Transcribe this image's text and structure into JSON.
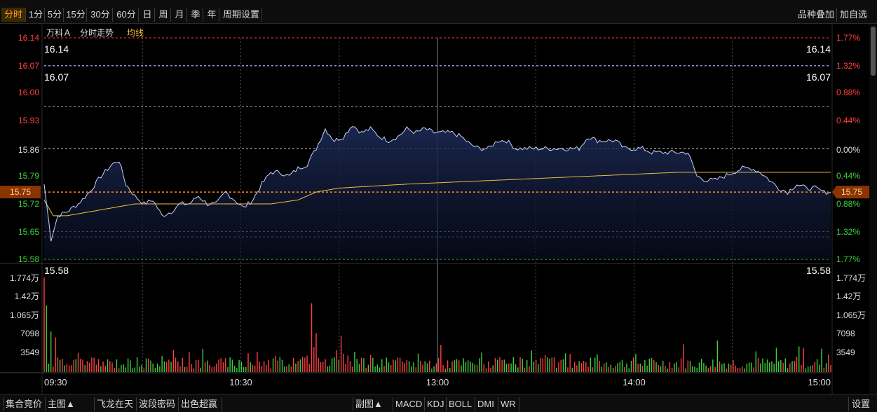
{
  "toolbar": {
    "periods": [
      "分时",
      "1分",
      "5分",
      "15分",
      "30分",
      "60分",
      "日",
      "周",
      "月",
      "季",
      "年",
      "周期设置"
    ],
    "selected": "分时",
    "right_buttons": [
      "品种叠加",
      "加自选"
    ]
  },
  "chart_header": {
    "stock_name": "万科Ａ",
    "mode": "分时走势",
    "avg_label": "均线"
  },
  "colors": {
    "price_line": "#c8d0ff",
    "avg_line": "#f0c040",
    "up": "#ff4040",
    "down": "#40d040",
    "neutral": "#ffffff",
    "current": "#ff8a1f",
    "high_line": "#ff4040",
    "low_line": "#3fbf4f",
    "grid": "#6a6a6a"
  },
  "price_labels_left": [
    "16.14",
    "16.07",
    "16.00",
    "15.93",
    "15.86",
    "15.79",
    "15.72",
    "15.65",
    "15.58"
  ],
  "pct_labels_right": [
    "1.77%",
    "1.32%",
    "0.88%",
    "0.44%",
    "0.00%",
    "0.44%",
    "0.88%",
    "1.32%",
    "1.77%"
  ],
  "price_overlay": {
    "high_left": "16.14",
    "high_right": "16.14",
    "second_left": "16.07",
    "second_right": "16.07",
    "low_left": "15.58",
    "low_right": "15.58"
  },
  "current_price": "15.75",
  "volume_labels_left": [
    "1.774万",
    "1.42万",
    "1.065万",
    "7098",
    "3549"
  ],
  "volume_labels_right": [
    "1.774万",
    "1.42万",
    "1.065万",
    "7098",
    "3549"
  ],
  "time_labels": [
    "09:30",
    "10:30",
    "13:00",
    "14:00",
    "15:00"
  ],
  "bottom_left": [
    "集合竞价",
    "主图▲",
    "飞龙在天",
    "波段密码",
    "出色超赢"
  ],
  "bottom_mid": [
    "副图▲",
    "MACD",
    "KDJ",
    "BOLL",
    "DMI",
    "WR"
  ],
  "bottom_right": "设置",
  "chart_data": {
    "type": "line",
    "preclose": 15.86,
    "ylim": [
      15.58,
      16.14
    ],
    "x": [
      "09:30",
      "10:30",
      "13:00",
      "14:00",
      "15:00"
    ],
    "price_anchors": [
      {
        "t": 0,
        "p": 15.77
      },
      {
        "t": 3,
        "p": 15.63
      },
      {
        "t": 6,
        "p": 15.69
      },
      {
        "t": 10,
        "p": 15.7
      },
      {
        "t": 15,
        "p": 15.72
      },
      {
        "t": 20,
        "p": 15.75
      },
      {
        "t": 25,
        "p": 15.79
      },
      {
        "t": 30,
        "p": 15.82
      },
      {
        "t": 33,
        "p": 15.83
      },
      {
        "t": 36,
        "p": 15.77
      },
      {
        "t": 40,
        "p": 15.74
      },
      {
        "t": 44,
        "p": 15.72
      },
      {
        "t": 48,
        "p": 15.73
      },
      {
        "t": 52,
        "p": 15.69
      },
      {
        "t": 56,
        "p": 15.7
      },
      {
        "t": 60,
        "p": 15.72
      },
      {
        "t": 64,
        "p": 15.72
      },
      {
        "t": 68,
        "p": 15.74
      },
      {
        "t": 72,
        "p": 15.72
      },
      {
        "t": 76,
        "p": 15.72
      },
      {
        "t": 80,
        "p": 15.75
      },
      {
        "t": 84,
        "p": 15.73
      },
      {
        "t": 88,
        "p": 15.71
      },
      {
        "t": 92,
        "p": 15.73
      },
      {
        "t": 96,
        "p": 15.77
      },
      {
        "t": 100,
        "p": 15.8
      },
      {
        "t": 104,
        "p": 15.8
      },
      {
        "t": 108,
        "p": 15.79
      },
      {
        "t": 112,
        "p": 15.81
      },
      {
        "t": 116,
        "p": 15.82
      },
      {
        "t": 120,
        "p": 15.86
      },
      {
        "t": 124,
        "p": 15.91
      },
      {
        "t": 128,
        "p": 15.88
      },
      {
        "t": 132,
        "p": 15.89
      },
      {
        "t": 136,
        "p": 15.92
      },
      {
        "t": 140,
        "p": 15.9
      },
      {
        "t": 144,
        "p": 15.91
      },
      {
        "t": 148,
        "p": 15.89
      },
      {
        "t": 152,
        "p": 15.88
      },
      {
        "t": 156,
        "p": 15.89
      },
      {
        "t": 160,
        "p": 15.91
      },
      {
        "t": 164,
        "p": 15.9
      },
      {
        "t": 168,
        "p": 15.91
      },
      {
        "t": 172,
        "p": 15.9
      },
      {
        "t": 176,
        "p": 15.9
      },
      {
        "t": 180,
        "p": 15.9
      },
      {
        "t": 184,
        "p": 15.89
      },
      {
        "t": 188,
        "p": 15.87
      },
      {
        "t": 192,
        "p": 15.86
      },
      {
        "t": 196,
        "p": 15.86
      },
      {
        "t": 200,
        "p": 15.88
      },
      {
        "t": 204,
        "p": 15.88
      },
      {
        "t": 208,
        "p": 15.86
      },
      {
        "t": 212,
        "p": 15.86
      },
      {
        "t": 216,
        "p": 15.86
      },
      {
        "t": 220,
        "p": 15.86
      },
      {
        "t": 224,
        "p": 15.86
      },
      {
        "t": 228,
        "p": 15.86
      },
      {
        "t": 232,
        "p": 15.86
      },
      {
        "t": 236,
        "p": 15.86
      },
      {
        "t": 240,
        "p": 15.89
      },
      {
        "t": 244,
        "p": 15.88
      },
      {
        "t": 248,
        "p": 15.88
      },
      {
        "t": 252,
        "p": 15.88
      },
      {
        "t": 256,
        "p": 15.86
      },
      {
        "t": 260,
        "p": 15.86
      },
      {
        "t": 264,
        "p": 15.86
      },
      {
        "t": 268,
        "p": 15.85
      },
      {
        "t": 272,
        "p": 15.85
      },
      {
        "t": 276,
        "p": 15.85
      },
      {
        "t": 280,
        "p": 15.85
      },
      {
        "t": 284,
        "p": 15.85
      },
      {
        "t": 288,
        "p": 15.79
      },
      {
        "t": 292,
        "p": 15.78
      },
      {
        "t": 296,
        "p": 15.78
      },
      {
        "t": 300,
        "p": 15.79
      },
      {
        "t": 304,
        "p": 15.8
      },
      {
        "t": 308,
        "p": 15.81
      },
      {
        "t": 312,
        "p": 15.81
      },
      {
        "t": 316,
        "p": 15.8
      },
      {
        "t": 320,
        "p": 15.78
      },
      {
        "t": 324,
        "p": 15.76
      },
      {
        "t": 328,
        "p": 15.75
      },
      {
        "t": 332,
        "p": 15.77
      },
      {
        "t": 336,
        "p": 15.76
      },
      {
        "t": 340,
        "p": 15.76
      },
      {
        "t": 344,
        "p": 15.75
      },
      {
        "t": 347,
        "p": 15.75
      }
    ],
    "avg_anchors": [
      {
        "t": 0,
        "p": 15.73
      },
      {
        "t": 4,
        "p": 15.69
      },
      {
        "t": 10,
        "p": 15.69
      },
      {
        "t": 20,
        "p": 15.7
      },
      {
        "t": 40,
        "p": 15.72
      },
      {
        "t": 60,
        "p": 15.72
      },
      {
        "t": 80,
        "p": 15.72
      },
      {
        "t": 100,
        "p": 15.72
      },
      {
        "t": 112,
        "p": 15.73
      },
      {
        "t": 120,
        "p": 15.75
      },
      {
        "t": 130,
        "p": 15.76
      },
      {
        "t": 160,
        "p": 15.77
      },
      {
        "t": 200,
        "p": 15.78
      },
      {
        "t": 240,
        "p": 15.79
      },
      {
        "t": 280,
        "p": 15.8
      },
      {
        "t": 320,
        "p": 15.8
      },
      {
        "t": 347,
        "p": 15.8
      }
    ],
    "volume_ylim": [
      0,
      17740
    ],
    "volume_peaks": [
      {
        "t": 0,
        "v": 17740
      },
      {
        "t": 1,
        "v": 12500
      },
      {
        "t": 3,
        "v": 7600
      },
      {
        "t": 5,
        "v": 6500
      },
      {
        "t": 118,
        "v": 12900
      },
      {
        "t": 120,
        "v": 7300
      },
      {
        "t": 131,
        "v": 6800
      },
      {
        "t": 175,
        "v": 5100
      },
      {
        "t": 282,
        "v": 5200
      },
      {
        "t": 297,
        "v": 5900
      },
      {
        "t": 333,
        "v": 4800
      }
    ]
  }
}
